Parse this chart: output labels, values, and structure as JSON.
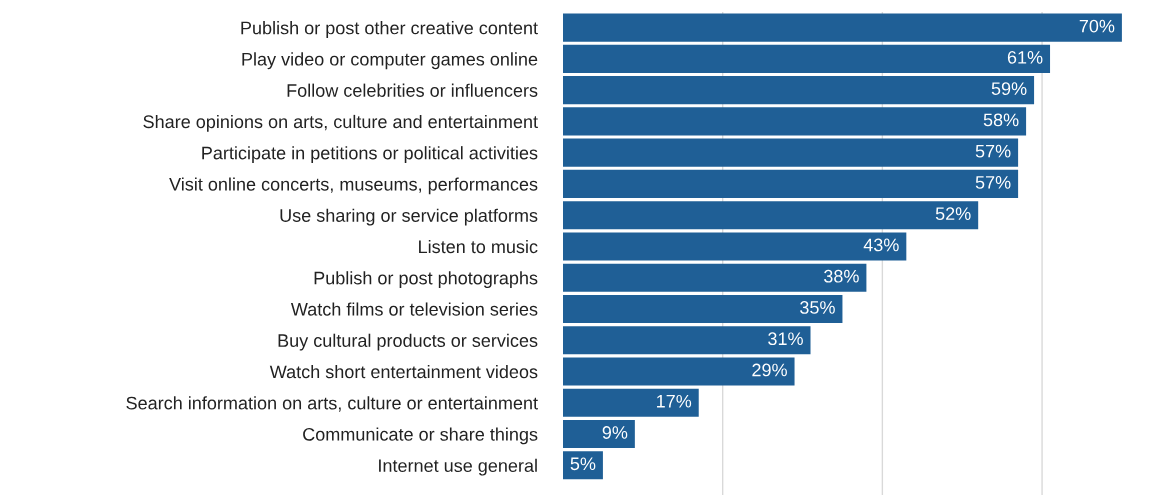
{
  "chart_data": {
    "type": "bar",
    "orientation": "horizontal",
    "categories": [
      "Publish or post other creative content",
      "Play video or computer games online",
      "Follow celebrities or influencers",
      "Share opinions on arts, culture and entertainment",
      "Participate in petitions or political activities",
      "Visit online concerts, museums, performances",
      "Use sharing or service platforms",
      "Listen to music",
      "Publish or post photographs",
      "Watch films or television series",
      "Buy cultural products or services",
      "Watch short entertainment videos",
      "Search information on arts, culture or entertainment",
      "Communicate or share things",
      "Internet use general"
    ],
    "values": [
      70,
      61,
      59,
      58,
      57,
      57,
      52,
      43,
      38,
      35,
      31,
      29,
      17,
      9,
      5
    ],
    "value_labels": [
      "70%",
      "61%",
      "59%",
      "58%",
      "57%",
      "57%",
      "52%",
      "43%",
      "38%",
      "35%",
      "31%",
      "29%",
      "17%",
      "9%",
      "5%"
    ],
    "color": "#1f5f96",
    "xticks": [
      {
        "value": 20,
        "label": null
      },
      {
        "value": 40,
        "label": null
      },
      {
        "value": 60,
        "label": null
      }
    ],
    "tick_labels": "y",
    "grid": "x"
  }
}
